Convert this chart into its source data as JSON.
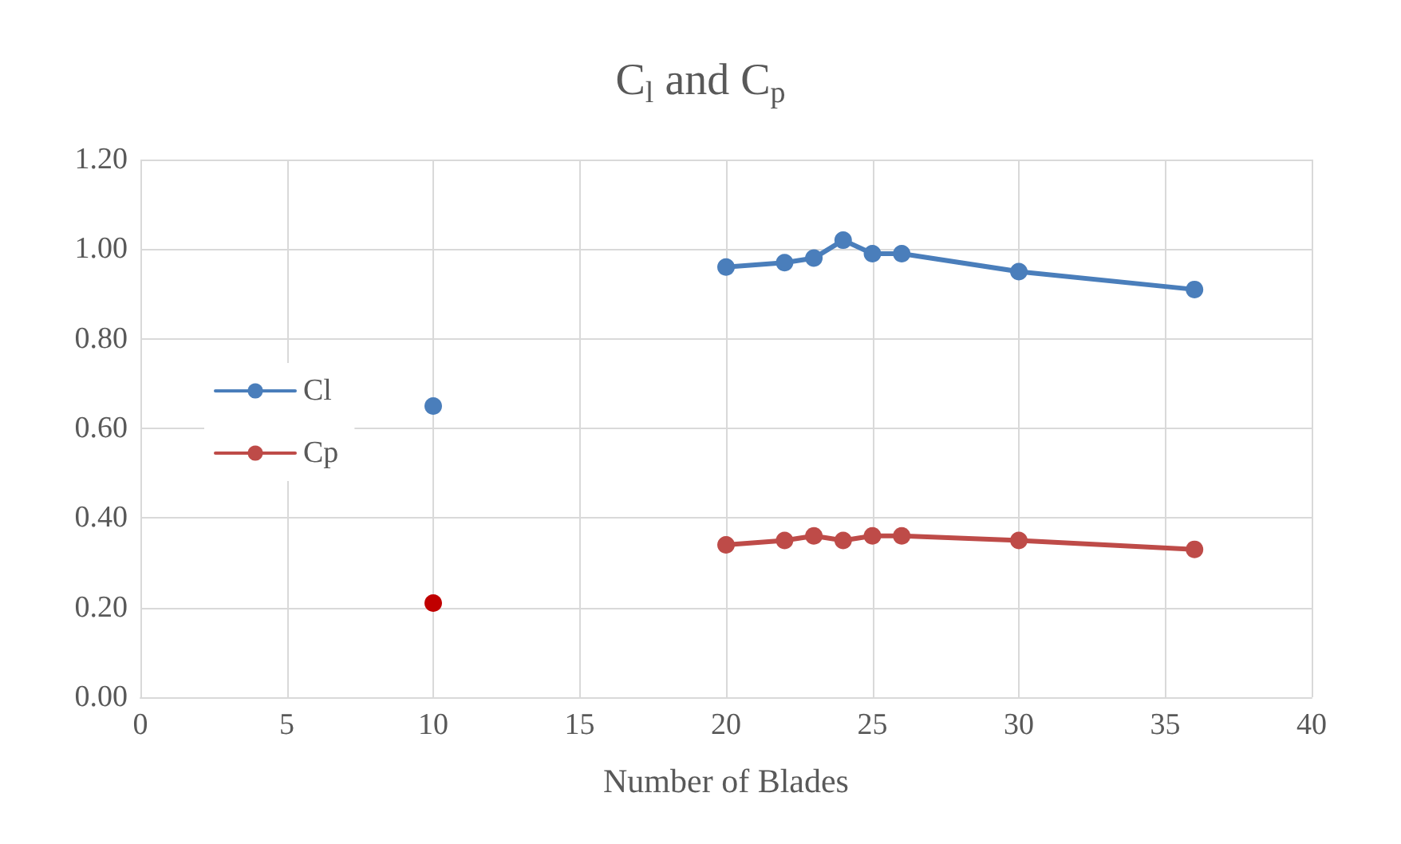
{
  "chart_data": {
    "type": "line",
    "title": "C$_{l}$ and C$_{p}$",
    "xlabel": "Number of Blades",
    "series": [
      {
        "name": "Cl",
        "color": "#4a7ebb",
        "x": [
          20,
          22,
          23,
          24,
          25,
          26,
          30,
          36
        ],
        "values": [
          0.96,
          0.97,
          0.98,
          1.02,
          0.99,
          0.99,
          0.95,
          0.91
        ]
      },
      {
        "name": "Cp",
        "color": "#be4b48",
        "x": [
          20,
          22,
          23,
          24,
          25,
          26,
          30,
          36
        ],
        "values": [
          0.34,
          0.35,
          0.36,
          0.35,
          0.36,
          0.36,
          0.35,
          0.33
        ]
      },
      {
        "type": "scatter",
        "color": "#4a7ebb",
        "x": [
          10
        ],
        "values": [
          0.65
        ]
      },
      {
        "type": "scatter",
        "color": "#c00000",
        "x": [
          10
        ],
        "values": [
          0.21
        ]
      }
    ],
    "xlim": [
      0,
      40
    ],
    "xticks": [
      0,
      5,
      10,
      15,
      20,
      25,
      30,
      35,
      40
    ],
    "ylim": [
      0,
      1.2
    ],
    "yticks": [
      {
        "value": 0,
        "label": "0.00"
      },
      {
        "value": 0.2,
        "label": "0.20"
      },
      {
        "value": 0.4,
        "label": "0.40"
      },
      {
        "value": 0.6,
        "label": "0.60"
      },
      {
        "value": 0.8,
        "label": "0.80"
      },
      {
        "value": 1.0,
        "label": "1.00"
      },
      {
        "value": 1.2,
        "label": "1.20"
      }
    ],
    "grid": true,
    "legend": "left",
    "marker": "circle",
    "line_style": "solid"
  }
}
